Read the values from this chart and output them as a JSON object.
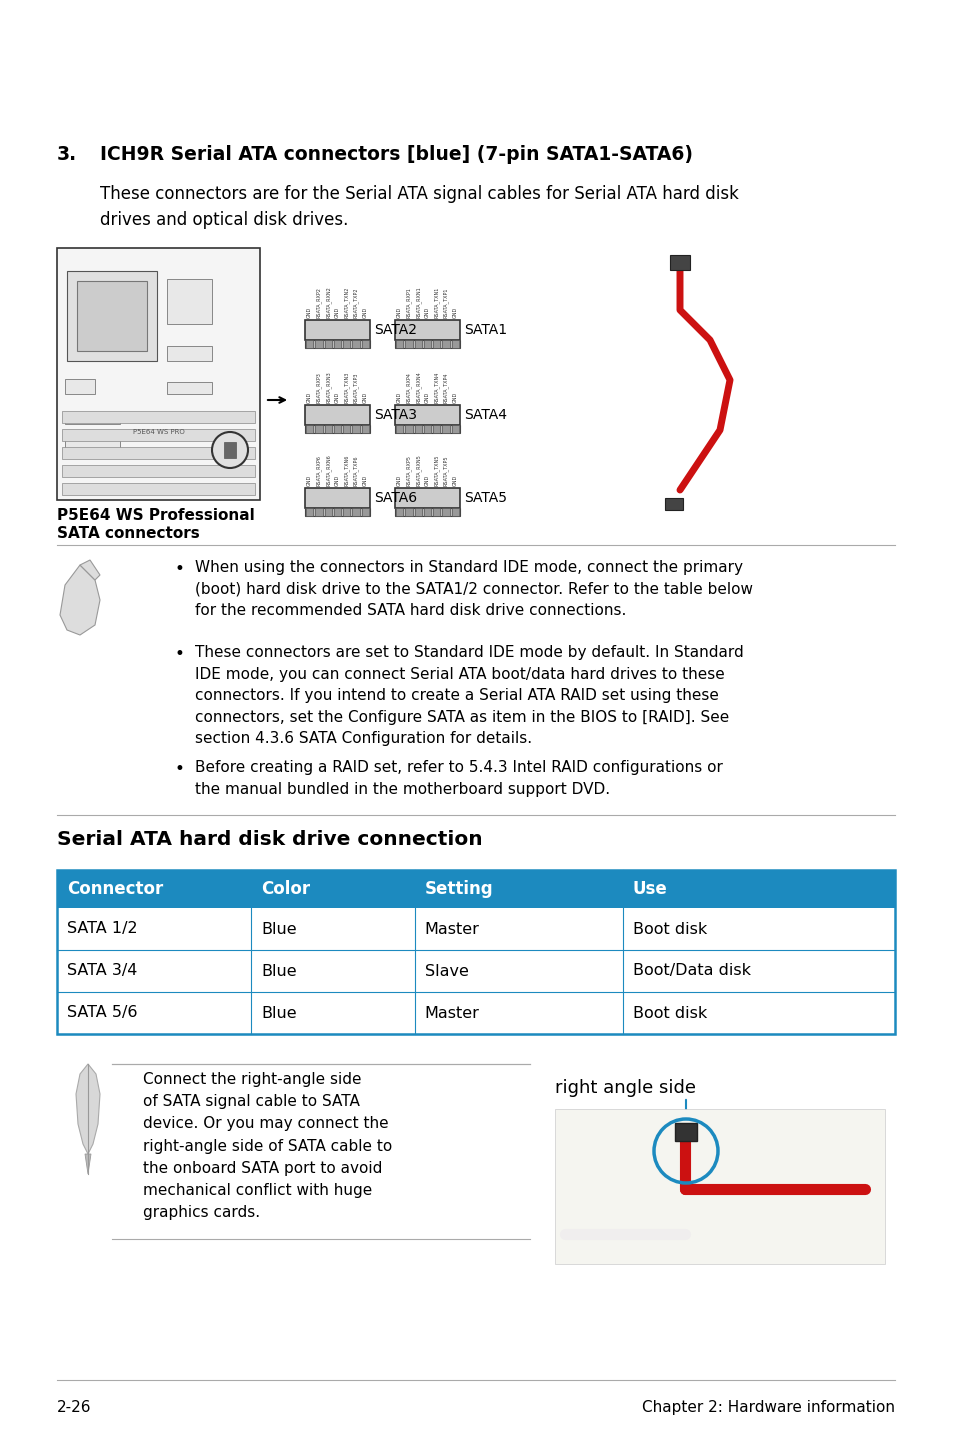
{
  "title_number": "3.",
  "title_text": "ICH9R Serial ATA connectors [blue] (7-pin SATA1-SATA6)",
  "body_text1": "These connectors are for the Serial ATA signal cables for Serial ATA hard disk\ndrives and optical disk drives.",
  "note1_bullet1": "When using the connectors in Standard IDE mode, connect the primary\n(boot) hard disk drive to the SATA1/2 connector. Refer to the table below\nfor the recommended SATA hard disk drive connections.",
  "note1_bullet2_pre": "These connectors are set to Standard IDE mode by default. In Standard\nIDE mode, you can connect Serial ATA boot/data hard drives to these\nconnectors. If you intend to create a Serial ATA RAID set using these\nconnectors, set the Configure SATA as item in the BIOS to [RAID]. See\nsection ",
  "note1_bullet2_bold": "4.3.6 SATA Configuration",
  "note1_bullet2_post": " for details.",
  "note1_bullet3_pre": "Before creating a RAID set, refer to ",
  "note1_bullet3_bold": "5.4.3 Intel RAID configurations",
  "note1_bullet3_post": " or\nthe manual bundled in the motherboard support DVD.",
  "section_title": "Serial ATA hard disk drive connection",
  "table_header": [
    "Connector",
    "Color",
    "Setting",
    "Use"
  ],
  "table_rows": [
    [
      "SATA 1/2",
      "Blue",
      "Master",
      "Boot disk"
    ],
    [
      "SATA 3/4",
      "Blue",
      "Slave",
      "Boot/Data disk"
    ],
    [
      "SATA 5/6",
      "Blue",
      "Master",
      "Boot disk"
    ]
  ],
  "table_header_bg": "#1c8abf",
  "table_header_color": "#ffffff",
  "table_border_color": "#1c8abf",
  "note2_text": "Connect the right-angle side\nof SATA signal cable to SATA\ndevice. Or you may connect the\nright-angle side of SATA cable to\nthe onboard SATA port to avoid\nmechanical conflict with huge\ngraphics cards.",
  "right_angle_label": "right angle side",
  "footer_left": "2-26",
  "footer_right": "Chapter 2: Hardware information",
  "bg_color": "#ffffff",
  "text_color": "#000000",
  "label_caption_line1": "P5E64 WS Professional",
  "label_caption_line2": "SATA connectors",
  "sata_pin_labels_left": [
    "GND",
    "RSATA_RXP2",
    "RSATA_RXN2",
    "GND",
    "RSATA_TXN2",
    "RSATA_TXP2",
    "GND"
  ],
  "sata_pin_labels_right": [
    "GND",
    "RSATA_RXP1",
    "RSATA_RXN1",
    "GND",
    "RSATA_TXN1",
    "RSATA_TXP1",
    "GND"
  ]
}
